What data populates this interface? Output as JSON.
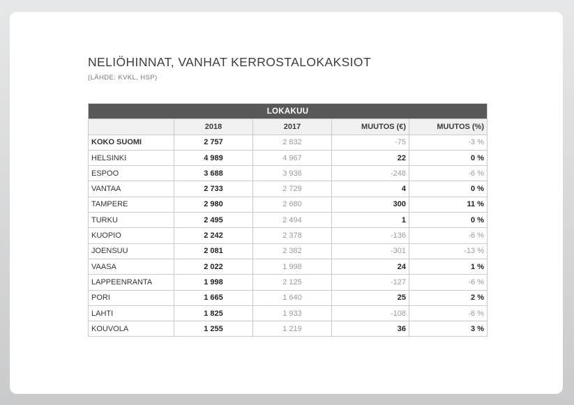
{
  "title": "NELIÖHINNAT, VANHAT KERROSTALOKAKSIOT",
  "subtitle": "(LÄHDE: KVKL, HSP)",
  "table": {
    "band": "LOKAKUU",
    "headers": [
      "",
      "2018",
      "2017",
      "MUUTOS (€)",
      "MUUTOS (%)"
    ],
    "rows": [
      {
        "city": "KOKO SUOMI",
        "y2018": "2 757",
        "y2017": "2 832",
        "change": "-75",
        "pct": "-3 %",
        "trend": "neg",
        "bold_city": true
      },
      {
        "city": "HELSINKI",
        "y2018": "4 989",
        "y2017": "4 967",
        "change": "22",
        "pct": "0 %",
        "trend": "pos"
      },
      {
        "city": "ESPOO",
        "y2018": "3 688",
        "y2017": "3 936",
        "change": "-248",
        "pct": "-6 %",
        "trend": "neg"
      },
      {
        "city": "VANTAA",
        "y2018": "2 733",
        "y2017": "2 729",
        "change": "4",
        "pct": "0 %",
        "trend": "pos"
      },
      {
        "city": "TAMPERE",
        "y2018": "2 980",
        "y2017": "2 680",
        "change": "300",
        "pct": "11 %",
        "trend": "pos"
      },
      {
        "city": "TURKU",
        "y2018": "2 495",
        "y2017": "2 494",
        "change": "1",
        "pct": "0 %",
        "trend": "pos"
      },
      {
        "city": "KUOPIO",
        "y2018": "2 242",
        "y2017": "2 378",
        "change": "-136",
        "pct": "-6 %",
        "trend": "neg"
      },
      {
        "city": "JOENSUU",
        "y2018": "2 081",
        "y2017": "2 382",
        "change": "-301",
        "pct": "-13 %",
        "trend": "neg"
      },
      {
        "city": "VAASA",
        "y2018": "2 022",
        "y2017": "1 998",
        "change": "24",
        "pct": "1 %",
        "trend": "pos"
      },
      {
        "city": "LAPPEENRANTA",
        "y2018": "1 998",
        "y2017": "2 125",
        "change": "-127",
        "pct": "-6 %",
        "trend": "neg"
      },
      {
        "city": "PORI",
        "y2018": "1 665",
        "y2017": "1 640",
        "change": "25",
        "pct": "2 %",
        "trend": "pos"
      },
      {
        "city": "LAHTI",
        "y2018": "1 825",
        "y2017": "1 933",
        "change": "-108",
        "pct": "-6 %",
        "trend": "neg"
      },
      {
        "city": "KOUVOLA",
        "y2018": "1 255",
        "y2017": "1 219",
        "change": "36",
        "pct": "3 %",
        "trend": "pos"
      }
    ]
  }
}
